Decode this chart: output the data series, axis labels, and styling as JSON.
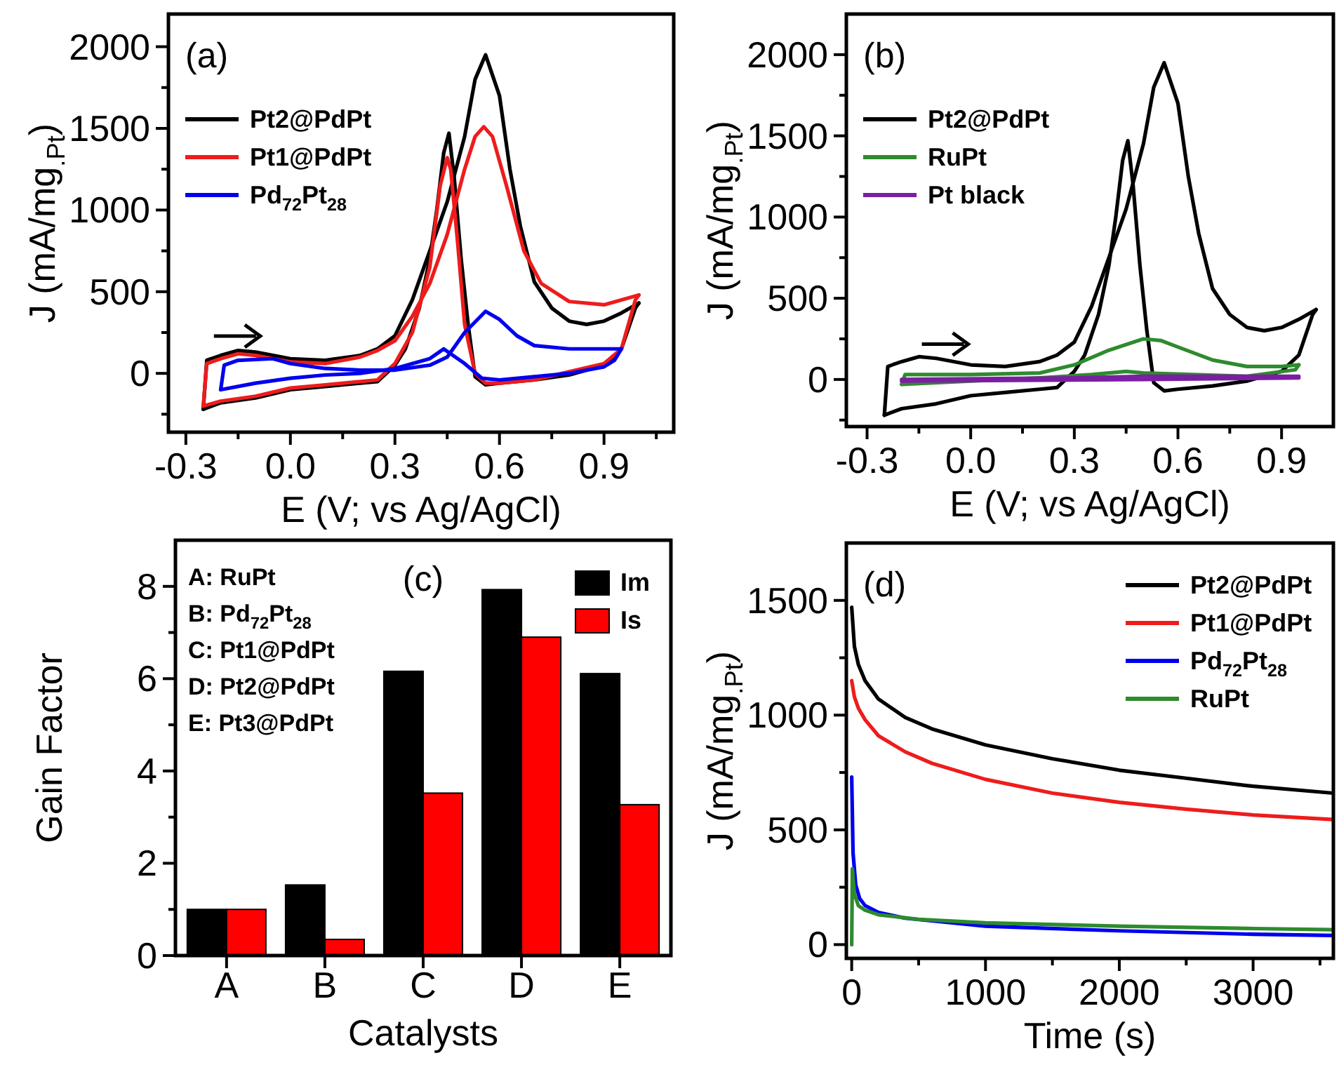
{
  "chart_data": [
    {
      "type": "line",
      "xlabel": "E (V; vs Ag/AgCl)",
      "ylabel": "J (mA/mg$_{.Pt}$)",
      "annotations": [
        "(a)"
      ],
      "xlim": [
        -0.35,
        1.1
      ],
      "ylim": [
        -360,
        2200
      ],
      "xticks": [
        -0.3,
        {
          "value": -0.15,
          "label": null
        },
        {
          "value": 0,
          "label": "0.0"
        },
        {
          "value": 0.15,
          "label": null
        },
        0.3,
        {
          "value": 0.45,
          "label": null
        },
        0.6,
        {
          "value": 0.75,
          "label": null
        },
        0.9,
        {
          "value": 1.05,
          "label": null
        }
      ],
      "yticks": [
        {
          "value": -250,
          "label": null
        },
        0,
        {
          "value": 250,
          "label": null
        },
        500,
        {
          "value": 750,
          "label": null
        },
        1000,
        {
          "value": 1250,
          "label": null
        },
        1500,
        {
          "value": 1750,
          "label": null
        },
        2000
      ],
      "legend": "top left",
      "series": [
        {
          "name": "Pt2@PdPt",
          "color": "#000000",
          "x": [
            -0.25,
            -0.24,
            -0.2,
            -0.15,
            -0.1,
            0,
            0.1,
            0.2,
            0.25,
            0.3,
            0.35,
            0.4,
            0.45,
            0.5,
            0.53,
            0.56,
            0.6,
            0.63,
            0.66,
            0.7,
            0.75,
            0.8,
            0.85,
            0.9,
            0.95,
            1.0
          ],
          "values": [
            -220,
            80,
            110,
            140,
            130,
            90,
            80,
            110,
            150,
            230,
            450,
            750,
            1050,
            1450,
            1800,
            1950,
            1700,
            1250,
            900,
            560,
            400,
            320,
            300,
            320,
            370,
            430
          ]
        },
        {
          "color": "#000000",
          "x": [
            -0.25,
            -0.2,
            -0.1,
            0,
            0.1,
            0.2,
            0.25,
            0.3,
            0.33,
            0.37,
            0.4,
            0.42,
            0.44,
            0.455,
            0.47,
            0.49,
            0.51,
            0.53,
            0.56,
            0.6,
            0.7,
            0.8,
            0.9,
            0.95,
            0.99,
            1.0
          ],
          "values": [
            -220,
            -180,
            -150,
            -100,
            -80,
            -60,
            -50,
            50,
            150,
            400,
            700,
            1000,
            1350,
            1470,
            1200,
            700,
            300,
            -20,
            -70,
            -60,
            -40,
            -10,
            50,
            150,
            400,
            430
          ]
        },
        {
          "name": "Pt1@PdPt",
          "color": "#ee1c1c",
          "x": [
            -0.25,
            -0.24,
            -0.2,
            -0.15,
            -0.1,
            0,
            0.1,
            0.2,
            0.25,
            0.3,
            0.35,
            0.4,
            0.45,
            0.5,
            0.53,
            0.555,
            0.58,
            0.62,
            0.67,
            0.72,
            0.8,
            0.9,
            1.0
          ],
          "values": [
            -200,
            60,
            90,
            120,
            110,
            70,
            60,
            100,
            140,
            200,
            350,
            550,
            850,
            1250,
            1450,
            1510,
            1450,
            1150,
            750,
            550,
            440,
            420,
            480
          ]
        },
        {
          "color": "#ee1c1c",
          "x": [
            -0.25,
            -0.2,
            -0.1,
            0,
            0.1,
            0.25,
            0.3,
            0.35,
            0.4,
            0.43,
            0.45,
            0.46,
            0.48,
            0.5,
            0.53,
            0.56,
            0.6,
            0.7,
            0.8,
            0.9,
            0.95,
            0.99,
            1.0
          ],
          "values": [
            -200,
            -170,
            -140,
            -90,
            -70,
            -40,
            60,
            250,
            650,
            1150,
            1320,
            1250,
            800,
            300,
            0,
            -60,
            -60,
            -40,
            10,
            60,
            150,
            450,
            480
          ]
        },
        {
          "name": "Pd$_{72}$Pt$_{28}$",
          "color": "#0000ee",
          "x": [
            -0.2,
            -0.19,
            -0.15,
            -0.05,
            0,
            0.1,
            0.2,
            0.3,
            0.4,
            0.45,
            0.5,
            0.56,
            0.6,
            0.65,
            0.7,
            0.8,
            0.9,
            0.95
          ],
          "values": [
            -100,
            50,
            80,
            90,
            60,
            30,
            20,
            20,
            50,
            100,
            250,
            380,
            330,
            230,
            170,
            150,
            150,
            150
          ]
        },
        {
          "color": "#0000ee",
          "x": [
            -0.2,
            -0.1,
            0,
            0.1,
            0.2,
            0.3,
            0.4,
            0.44,
            0.5,
            0.55,
            0.6,
            0.7,
            0.8,
            0.9,
            0.93,
            0.95
          ],
          "values": [
            -100,
            -60,
            -30,
            -10,
            0,
            30,
            90,
            150,
            60,
            -30,
            -40,
            -20,
            0,
            40,
            80,
            150
          ]
        }
      ]
    },
    {
      "type": "line",
      "xlabel": "E (V; vs Ag/AgCl)",
      "ylabel": "J (mA/mg$_{.Pt}$)",
      "annotations": [
        "(b)"
      ],
      "xlim": [
        -0.36,
        1.05
      ],
      "ylim": [
        -290,
        2250
      ],
      "xticks": [
        -0.3,
        {
          "value": -0.15,
          "label": null
        },
        {
          "value": 0,
          "label": "0.0"
        },
        {
          "value": 0.15,
          "label": null
        },
        0.3,
        {
          "value": 0.45,
          "label": null
        },
        0.6,
        {
          "value": 0.75,
          "label": null
        },
        0.9
      ],
      "yticks": [
        {
          "value": -250,
          "label": null
        },
        0,
        {
          "value": 250,
          "label": null
        },
        500,
        {
          "value": 750,
          "label": null
        },
        1000,
        {
          "value": 1250,
          "label": null
        },
        1500,
        {
          "value": 1750,
          "label": null
        },
        2000
      ],
      "legend": "top left",
      "series": [
        {
          "name": "Pt2@PdPt",
          "color": "#000000",
          "x": [
            -0.25,
            -0.24,
            -0.2,
            -0.15,
            -0.1,
            0,
            0.1,
            0.2,
            0.25,
            0.3,
            0.35,
            0.4,
            0.45,
            0.5,
            0.53,
            0.56,
            0.6,
            0.63,
            0.66,
            0.7,
            0.75,
            0.8,
            0.85,
            0.9,
            0.95,
            1.0
          ],
          "values": [
            -220,
            80,
            110,
            140,
            130,
            90,
            80,
            110,
            150,
            230,
            450,
            750,
            1050,
            1450,
            1800,
            1950,
            1700,
            1250,
            900,
            560,
            400,
            320,
            300,
            320,
            370,
            430
          ]
        },
        {
          "color": "#000000",
          "x": [
            -0.25,
            -0.2,
            -0.1,
            0,
            0.1,
            0.2,
            0.25,
            0.3,
            0.33,
            0.37,
            0.4,
            0.42,
            0.44,
            0.455,
            0.47,
            0.49,
            0.51,
            0.53,
            0.56,
            0.6,
            0.7,
            0.8,
            0.9,
            0.95,
            0.99,
            1.0
          ],
          "values": [
            -220,
            -180,
            -150,
            -100,
            -80,
            -60,
            -50,
            50,
            150,
            400,
            700,
            1000,
            1350,
            1470,
            1200,
            700,
            300,
            -20,
            -70,
            -60,
            -40,
            -10,
            50,
            150,
            400,
            430
          ]
        },
        {
          "name": "RuPt",
          "color": "#2e8b2e",
          "x": [
            -0.2,
            -0.19,
            0,
            0.2,
            0.3,
            0.4,
            0.5,
            0.55,
            0.6,
            0.7,
            0.8,
            0.9,
            0.95
          ],
          "values": [
            -30,
            30,
            30,
            40,
            90,
            180,
            250,
            240,
            200,
            120,
            80,
            80,
            90
          ]
        },
        {
          "color": "#2e8b2e",
          "x": [
            -0.2,
            0,
            0.2,
            0.35,
            0.45,
            0.5,
            0.6,
            0.8,
            0.94,
            0.95
          ],
          "values": [
            -30,
            -10,
            10,
            30,
            50,
            40,
            null,
            20,
            60,
            90
          ]
        },
        {
          "name": "Pt black",
          "color": "#7b1fa2",
          "x": [
            -0.2,
            0.3,
            0.5,
            0.95
          ],
          "values": [
            0,
            10,
            20,
            20
          ]
        },
        {
          "color": "#7b1fa2",
          "x": [
            -0.2,
            0.5,
            0.95
          ],
          "values": [
            -10,
            0,
            10
          ]
        }
      ]
    },
    {
      "type": "bar",
      "xlabel": "Catalysts",
      "ylabel": "Gain Factor",
      "annotations": [
        "(c)",
        "A: RuPt",
        "B: Pd$_{72}$Pt$_{28}$",
        "C: Pt1@PdPt",
        "D: Pt2@PdPt",
        "E: Pt3@PdPt"
      ],
      "categories": [
        "A",
        "B",
        "C",
        "D",
        "E"
      ],
      "ylim": [
        0,
        9
      ],
      "yticks": [
        0,
        {
          "value": 1,
          "label": null
        },
        2,
        {
          "value": 3,
          "label": null
        },
        4,
        {
          "value": 5,
          "label": null
        },
        6,
        {
          "value": 7,
          "label": null
        },
        8
      ],
      "legend": "top right",
      "series": [
        {
          "name": "Im",
          "color": "#000000",
          "values": [
            1.0,
            1.53,
            6.16,
            7.93,
            6.11
          ]
        },
        {
          "name": "Is",
          "color": "#ff0000",
          "values": [
            1.0,
            0.35,
            3.52,
            6.9,
            3.27
          ]
        }
      ]
    },
    {
      "type": "line",
      "xlabel": "Time (s)",
      "ylabel": "J (mA/mg$_{.Pt}$)",
      "annotations": [
        "(d)"
      ],
      "xlim": [
        -40,
        3600
      ],
      "ylim": [
        -60,
        1750
      ],
      "xticks": [
        0,
        {
          "value": 500,
          "label": null
        },
        1000,
        {
          "value": 1500,
          "label": null
        },
        2000,
        {
          "value": 2500,
          "label": null
        },
        3000,
        {
          "value": 3500,
          "label": null
        }
      ],
      "yticks": [
        0,
        {
          "value": 250,
          "label": null
        },
        500,
        {
          "value": 750,
          "label": null
        },
        1000,
        {
          "value": 1250,
          "label": null
        },
        1500
      ],
      "legend": "top right",
      "series": [
        {
          "name": "Pt2@PdPt",
          "color": "#000000",
          "x": [
            0,
            20,
            50,
            100,
            200,
            400,
            600,
            1000,
            1500,
            2000,
            2500,
            3000,
            3600
          ],
          "values": [
            1470,
            1300,
            1220,
            1150,
            1070,
            990,
            940,
            870,
            810,
            760,
            725,
            690,
            660
          ]
        },
        {
          "name": "Pt1@PdPt",
          "color": "#ee1c1c",
          "x": [
            0,
            20,
            50,
            100,
            200,
            400,
            600,
            1000,
            1500,
            2000,
            2500,
            3000,
            3600
          ],
          "values": [
            1150,
            1080,
            1030,
            980,
            910,
            840,
            790,
            720,
            660,
            620,
            590,
            565,
            545
          ]
        },
        {
          "name": "Pd$_{72}$Pt$_{28}$",
          "color": "#0000ee",
          "x": [
            0,
            10,
            30,
            60,
            100,
            200,
            400,
            1000,
            2000,
            3000,
            3600
          ],
          "values": [
            730,
            400,
            260,
            200,
            170,
            140,
            115,
            80,
            60,
            45,
            40
          ]
        },
        {
          "name": "RuPt",
          "color": "#2e8b2e",
          "x": [
            0,
            5,
            20,
            50,
            100,
            200,
            500,
            1000,
            2000,
            3000,
            3600
          ],
          "values": [
            0,
            330,
            220,
            170,
            150,
            130,
            110,
            95,
            80,
            70,
            65
          ]
        }
      ]
    }
  ]
}
